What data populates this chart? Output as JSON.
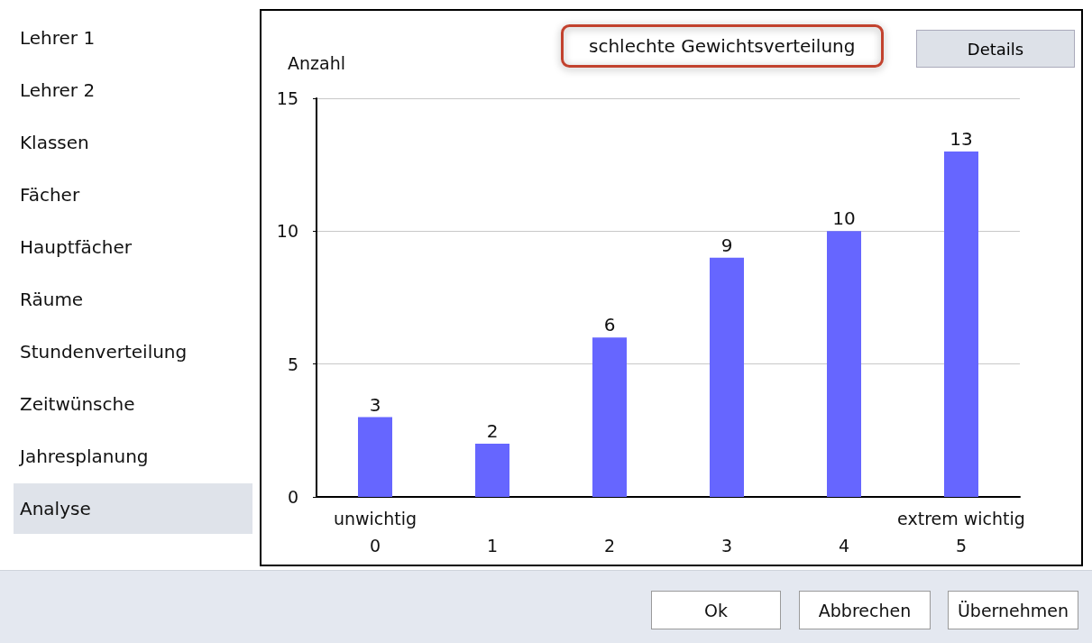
{
  "chart_data": {
    "type": "bar",
    "title": "schlechte Gewichtsverteilung",
    "ylabel": "Anzahl",
    "categories": [
      "0",
      "1",
      "2",
      "3",
      "4",
      "5"
    ],
    "values": [
      3,
      2,
      6,
      9,
      10,
      13
    ],
    "color": "#6666ff",
    "ylim": [
      0,
      15
    ],
    "yticks": [
      0,
      5,
      10,
      15
    ],
    "grid": "y",
    "data_labels": true,
    "annotations": [
      "unwichtig",
      "extrem wichtig",
      "Details",
      "Lehrer 1",
      "Lehrer 2",
      "Klassen",
      "Fächer",
      "Hauptfächer",
      "Räume",
      "Stundenverteilung",
      "Zeitwünsche",
      "Jahresplanung",
      "Analyse",
      "Ok",
      "Abbrechen",
      "Übernehmen"
    ]
  }
}
